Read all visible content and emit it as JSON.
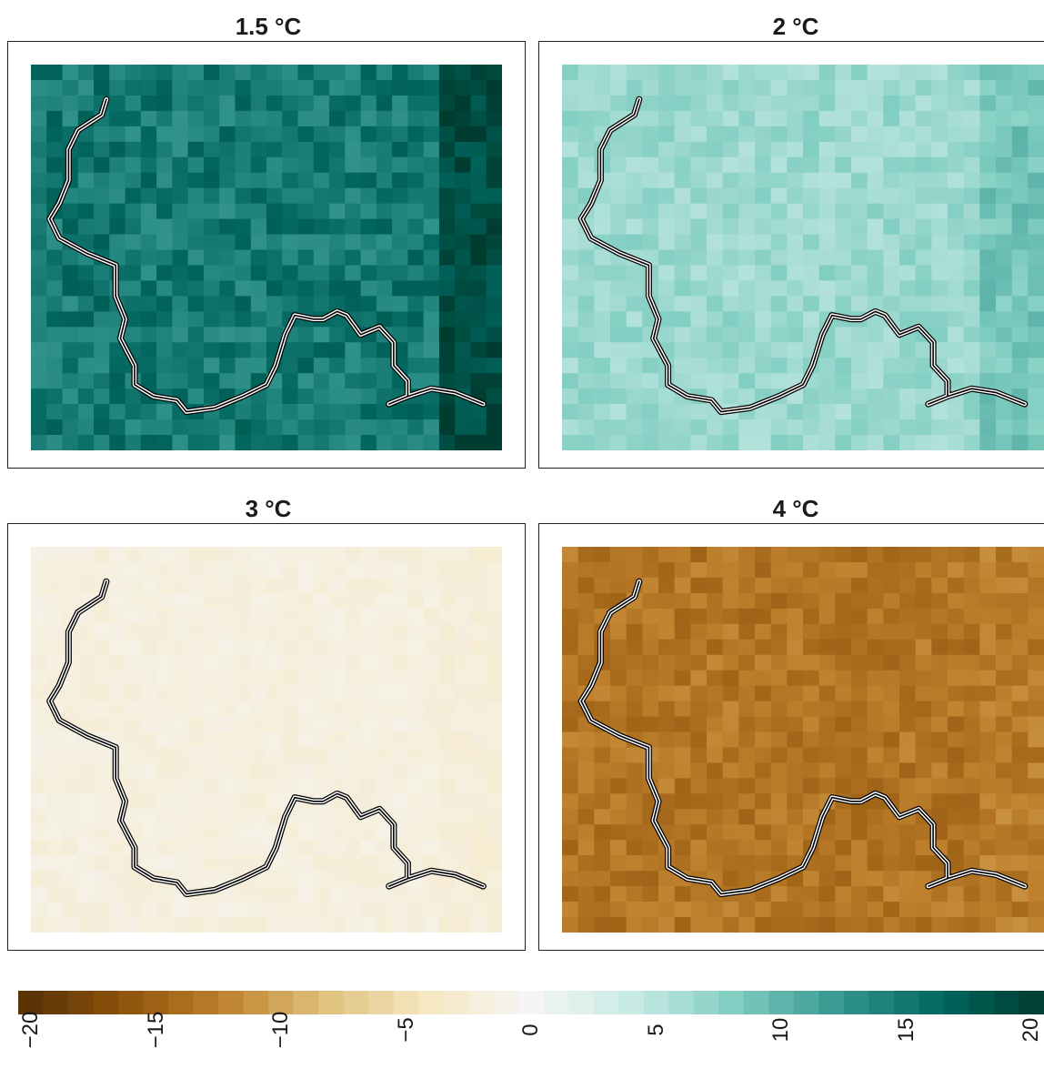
{
  "chart_data": {
    "type": "heatmap",
    "panels": [
      {
        "title": "1.5 °C",
        "mean": 14.5,
        "east_block": 18.5,
        "variability": 2.2
      },
      {
        "title": "2 °C",
        "mean": 6.5,
        "east_block": 8.5,
        "variability": 1.4
      },
      {
        "title": "3 °C",
        "mean": -1.8,
        "east_block": -2.3,
        "variability": 0.6
      },
      {
        "title": "4 °C",
        "mean": -13.0,
        "east_block": -12.5,
        "variability": 1.5
      }
    ],
    "colorbar": {
      "range": [
        -20,
        20
      ],
      "ticks": [
        "−20",
        "−15",
        "−10",
        "−5",
        "0",
        "5",
        "10",
        "15",
        "20"
      ],
      "tick_values": [
        -20,
        -15,
        -10,
        -5,
        0,
        5,
        10,
        15,
        20
      ],
      "steps": 41,
      "colors": [
        "#543005",
        "#8c510a",
        "#bf812d",
        "#dfc27d",
        "#f6e8c3",
        "#f5f5f5",
        "#c7eae5",
        "#80cdc1",
        "#35978f",
        "#01665e",
        "#003c30"
      ]
    },
    "grid": {
      "rows": 25,
      "cols": 30
    }
  }
}
